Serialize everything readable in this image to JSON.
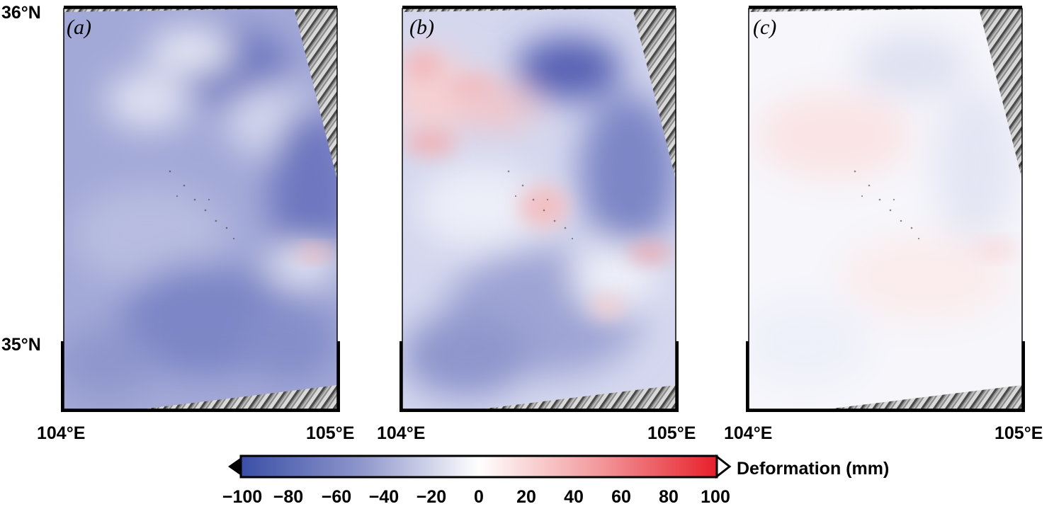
{
  "figure": {
    "panels": [
      {
        "letter": "(a)",
        "tone": "a"
      },
      {
        "letter": "(b)",
        "tone": "b"
      },
      {
        "letter": "(c)",
        "tone": "c"
      }
    ],
    "lat_labels": [
      "36°N",
      "35°N"
    ],
    "lon_labels": [
      "104°E",
      "105°E"
    ]
  },
  "colorbar": {
    "title": "Deformation (mm)",
    "ticks": [
      "−100",
      "−80",
      "−60",
      "−40",
      "−20",
      "0",
      "20",
      "40",
      "60",
      "80",
      "100"
    ],
    "colors": {
      "min": "#3a4fa6",
      "mid": "#ffffff",
      "max": "#e8202a"
    }
  }
}
